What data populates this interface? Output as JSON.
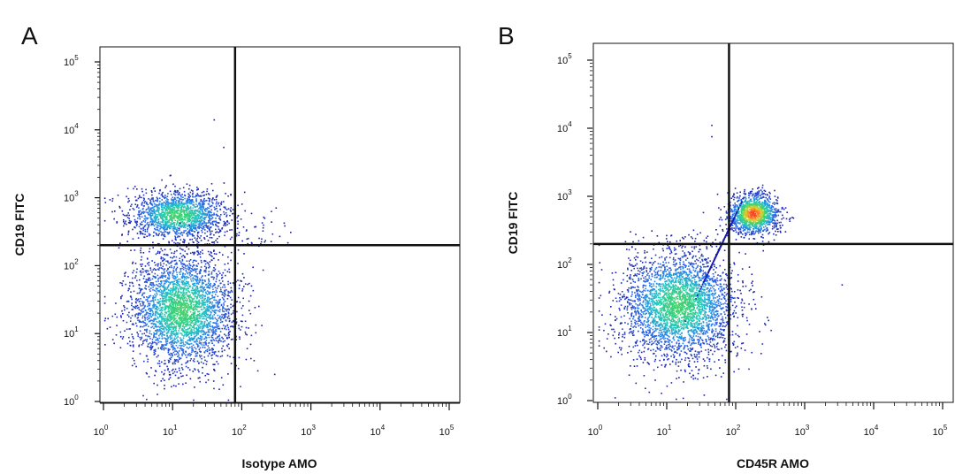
{
  "chart_data": [
    {
      "type": "scatter",
      "panel_label": "A",
      "xlabel": "Isotype AMO",
      "ylabel": "CD19 FITC",
      "xscale": "log",
      "yscale": "log",
      "xlim": [
        1,
        100000
      ],
      "ylim": [
        1,
        100000
      ],
      "x_ticks": [
        {
          "base": "10",
          "exp": "0"
        },
        {
          "base": "10",
          "exp": "1"
        },
        {
          "base": "10",
          "exp": "2"
        },
        {
          "base": "10",
          "exp": "3"
        },
        {
          "base": "10",
          "exp": "4"
        },
        {
          "base": "10",
          "exp": "5"
        }
      ],
      "y_ticks": [
        {
          "base": "10",
          "exp": "0"
        },
        {
          "base": "10",
          "exp": "1"
        },
        {
          "base": "10",
          "exp": "2"
        },
        {
          "base": "10",
          "exp": "3"
        },
        {
          "base": "10",
          "exp": "4"
        },
        {
          "base": "10",
          "exp": "5"
        }
      ],
      "quadrant_gate": {
        "x": 80,
        "y": 200
      },
      "point_color_scale": [
        "#1a1aa6",
        "#2b6ff0",
        "#22c4c4",
        "#3fd36b",
        "#e8d22c",
        "#ff3b1f"
      ],
      "populations": [
        {
          "center": [
            12,
            550
          ],
          "spread_log10": [
            0.35,
            0.18
          ],
          "count": 1600,
          "peak_color": "#3fd36b"
        },
        {
          "center": [
            14,
            22
          ],
          "spread_log10": [
            0.38,
            0.42
          ],
          "count": 3200,
          "peak_color": "#3fd36b"
        },
        {
          "center": [
            150,
            300
          ],
          "spread_log10": [
            0.25,
            0.15
          ],
          "count": 40,
          "peak_color": "#1a1aa6"
        }
      ],
      "outliers": [
        [
          40,
          14000
        ],
        [
          55,
          5500
        ],
        [
          300,
          2.5
        ],
        [
          120,
          6
        ]
      ]
    },
    {
      "type": "scatter",
      "panel_label": "B",
      "xlabel": "CD45R AMO",
      "ylabel": "CD19 FITC",
      "xscale": "log",
      "yscale": "log",
      "xlim": [
        1,
        100000
      ],
      "ylim": [
        1,
        100000
      ],
      "x_ticks": [
        {
          "base": "10",
          "exp": "0"
        },
        {
          "base": "10",
          "exp": "1"
        },
        {
          "base": "10",
          "exp": "2"
        },
        {
          "base": "10",
          "exp": "3"
        },
        {
          "base": "10",
          "exp": "4"
        },
        {
          "base": "10",
          "exp": "5"
        }
      ],
      "y_ticks": [
        {
          "base": "10",
          "exp": "0"
        },
        {
          "base": "10",
          "exp": "1"
        },
        {
          "base": "10",
          "exp": "2"
        },
        {
          "base": "10",
          "exp": "3"
        },
        {
          "base": "10",
          "exp": "4"
        },
        {
          "base": "10",
          "exp": "5"
        }
      ],
      "quadrant_gate": {
        "x": 80,
        "y": 200
      },
      "point_color_scale": [
        "#1a1aa6",
        "#2b6ff0",
        "#22c4c4",
        "#3fd36b",
        "#e8d22c",
        "#ff3b1f"
      ],
      "populations": [
        {
          "center": [
            180,
            550
          ],
          "spread_log10": [
            0.18,
            0.15
          ],
          "count": 1400,
          "peak_color": "#ff3b1f"
        },
        {
          "center": [
            15,
            25
          ],
          "spread_log10": [
            0.42,
            0.4
          ],
          "count": 3200,
          "peak_color": "#3fd36b"
        },
        {
          "center": [
            60,
            180
          ],
          "spread_log10": [
            0.15,
            0.2
          ],
          "count": 300,
          "peak_color": "#1a1aa6"
        }
      ],
      "outliers": [
        [
          45,
          11000
        ],
        [
          45,
          7500
        ],
        [
          3500,
          50
        ],
        [
          300,
          15
        ],
        [
          35,
          1.2
        ]
      ]
    }
  ]
}
